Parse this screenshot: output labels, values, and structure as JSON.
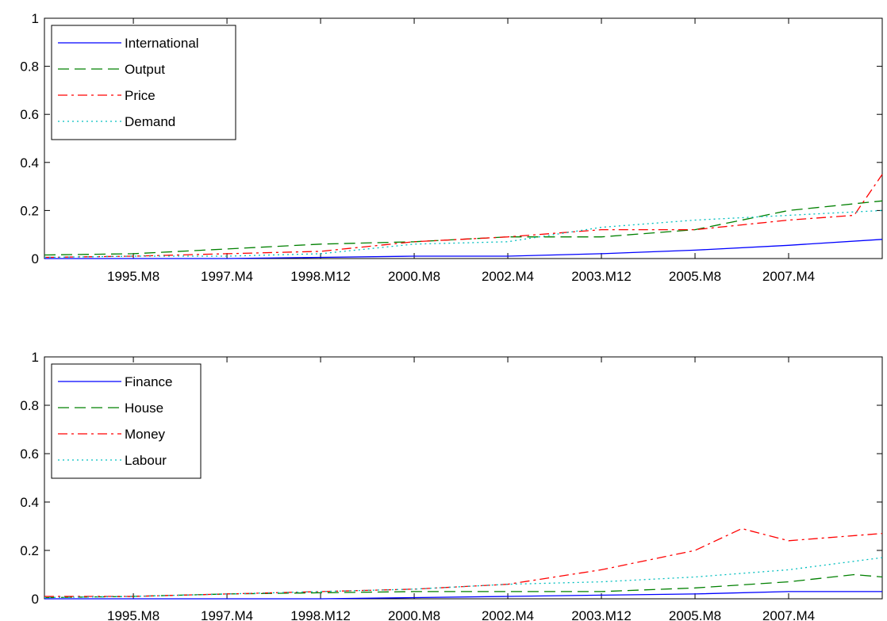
{
  "chart_data": [
    {
      "type": "line",
      "ylim": [
        0,
        1
      ],
      "yticks": [
        "0",
        "0.2",
        "0.4",
        "0.6",
        "0.8",
        "1"
      ],
      "x_tick_labels": [
        "1995.M8",
        "1997.M4",
        "1998.M12",
        "2000.M8",
        "2002.M4",
        "2003.M12",
        "2005.M8",
        "2007.M4"
      ],
      "grid": false,
      "legend_position": "top-left",
      "series": [
        {
          "name": "International",
          "color": "#0000ff",
          "style": "solid",
          "x": [
            "1994.M1",
            "1995.M8",
            "1997.M4",
            "1998.M12",
            "2000.M8",
            "2002.M4",
            "2003.M12",
            "2005.M8",
            "2007.M4",
            "2008.M12"
          ],
          "values": [
            0.0,
            0.0,
            0.0,
            0.005,
            0.01,
            0.01,
            0.02,
            0.035,
            0.055,
            0.08
          ]
        },
        {
          "name": "Output",
          "color": "#008000",
          "style": "dashed",
          "x": [
            "1994.M1",
            "1995.M8",
            "1997.M4",
            "1998.M12",
            "2000.M8",
            "2002.M4",
            "2003.M12",
            "2005.M8",
            "2007.M4",
            "2008.M12"
          ],
          "values": [
            0.015,
            0.02,
            0.04,
            0.06,
            0.07,
            0.09,
            0.09,
            0.12,
            0.2,
            0.24
          ]
        },
        {
          "name": "Price",
          "color": "#ff0000",
          "style": "dashdot",
          "x": [
            "1994.M1",
            "1995.M8",
            "1997.M4",
            "1998.M12",
            "2000.M8",
            "2002.M4",
            "2003.M12",
            "2005.M8",
            "2007.M4",
            "2008.M6",
            "2008.M12"
          ],
          "values": [
            0.005,
            0.01,
            0.02,
            0.03,
            0.07,
            0.09,
            0.12,
            0.12,
            0.16,
            0.18,
            0.35
          ]
        },
        {
          "name": "Demand",
          "color": "#00bfbf",
          "style": "dotted",
          "x": [
            "1994.M1",
            "1995.M8",
            "1997.M4",
            "1998.M12",
            "2000.M8",
            "2002.M4",
            "2003.M12",
            "2005.M8",
            "2007.M4",
            "2008.M12"
          ],
          "values": [
            0.005,
            0.01,
            0.01,
            0.02,
            0.06,
            0.07,
            0.13,
            0.16,
            0.18,
            0.2
          ]
        }
      ]
    },
    {
      "type": "line",
      "ylim": [
        0,
        1
      ],
      "yticks": [
        "0",
        "0.2",
        "0.4",
        "0.6",
        "0.8",
        "1"
      ],
      "x_tick_labels": [
        "1995.M8",
        "1997.M4",
        "1998.M12",
        "2000.M8",
        "2002.M4",
        "2003.M12",
        "2005.M8",
        "2007.M4"
      ],
      "grid": false,
      "legend_position": "top-left",
      "series": [
        {
          "name": "Finance",
          "color": "#0000ff",
          "style": "solid",
          "x": [
            "1994.M1",
            "1995.M8",
            "1997.M4",
            "1998.M12",
            "2000.M8",
            "2002.M4",
            "2003.M12",
            "2005.M8",
            "2007.M4",
            "2008.M12"
          ],
          "values": [
            0.0,
            0.0,
            0.0,
            0.0,
            0.005,
            0.01,
            0.015,
            0.02,
            0.03,
            0.03
          ]
        },
        {
          "name": "House",
          "color": "#008000",
          "style": "dashed",
          "x": [
            "1994.M1",
            "1995.M8",
            "1997.M4",
            "1998.M12",
            "2000.M8",
            "2002.M4",
            "2003.M12",
            "2005.M8",
            "2007.M4",
            "2008.M6",
            "2008.M12"
          ],
          "values": [
            0.005,
            0.01,
            0.02,
            0.025,
            0.03,
            0.03,
            0.03,
            0.045,
            0.07,
            0.1,
            0.09
          ]
        },
        {
          "name": "Money",
          "color": "#ff0000",
          "style": "dashdot",
          "x": [
            "1994.M1",
            "1995.M8",
            "1997.M4",
            "1998.M12",
            "2000.M8",
            "2002.M4",
            "2003.M12",
            "2005.M8",
            "2006.M6",
            "2007.M4",
            "2008.M12"
          ],
          "values": [
            0.01,
            0.01,
            0.02,
            0.03,
            0.04,
            0.06,
            0.12,
            0.2,
            0.29,
            0.24,
            0.27
          ]
        },
        {
          "name": "Labour",
          "color": "#00bfbf",
          "style": "dotted",
          "x": [
            "1994.M1",
            "1995.M8",
            "1997.M4",
            "1998.M12",
            "2000.M8",
            "2002.M4",
            "2003.M12",
            "2005.M8",
            "2007.M4",
            "2008.M12"
          ],
          "values": [
            0.005,
            0.01,
            0.02,
            0.03,
            0.04,
            0.06,
            0.07,
            0.09,
            0.12,
            0.17
          ]
        }
      ]
    }
  ]
}
